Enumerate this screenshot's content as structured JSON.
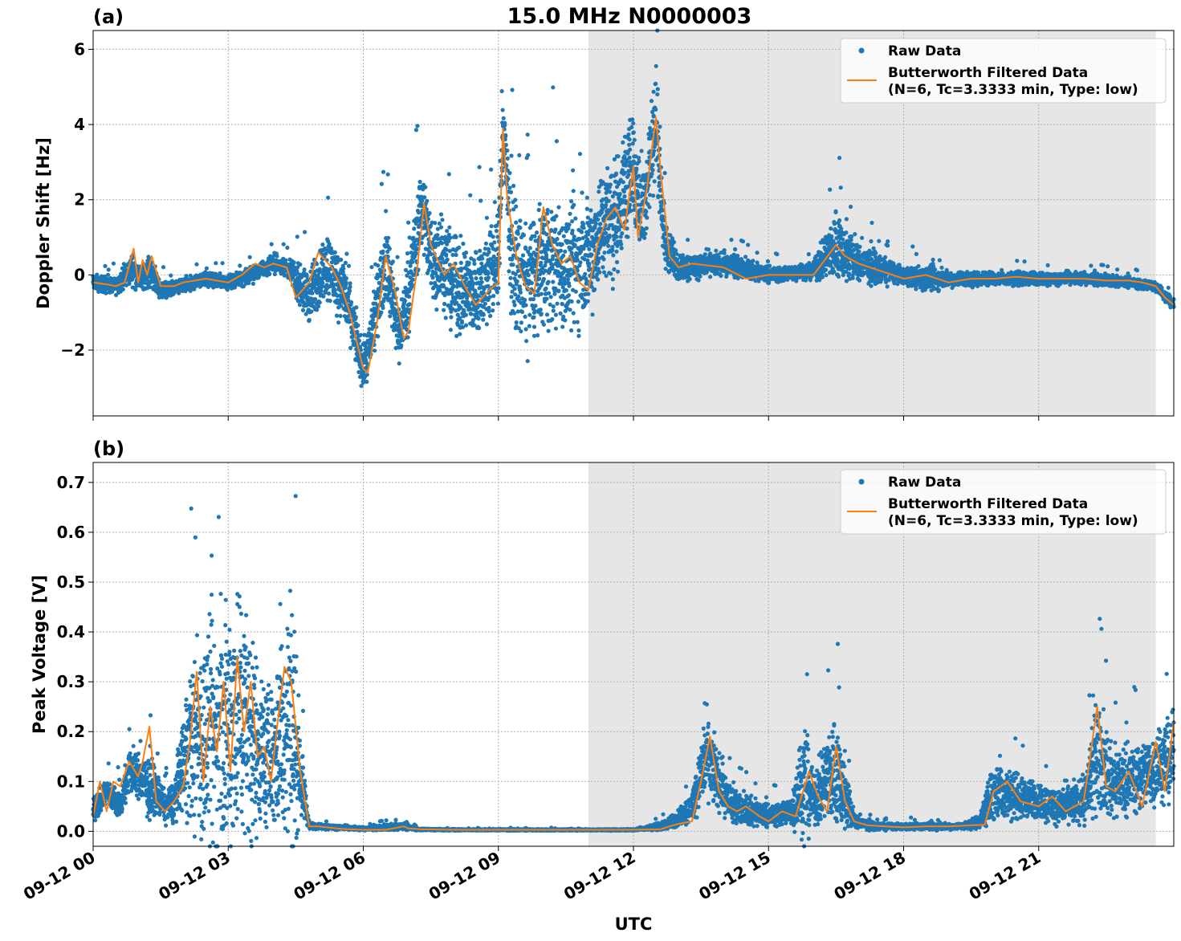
{
  "figure": {
    "title": "15.0 MHz N0000003",
    "xlabel": "UTC"
  },
  "colors": {
    "raw": "#1f77b4",
    "filtered": "#ff7f0e",
    "shade": "#e6e6e6",
    "grid": "#b0b0b0"
  },
  "chart_data": [
    {
      "type": "scatter",
      "panel_label": "(a)",
      "title": "15.0 MHz N0000003",
      "ylabel": "Doppler Shift [Hz]",
      "xlabel": "",
      "x_unit": "hours since 09-12 00:00 UTC",
      "xlim": [
        0,
        24
      ],
      "ylim": [
        -3.75,
        6.5
      ],
      "yticks": [
        -2,
        0,
        2,
        4,
        6
      ],
      "ytick_labels": [
        "−2",
        "0",
        "2",
        "4",
        "6"
      ],
      "grid": true,
      "legend_position": "top-right",
      "shaded_region": [
        11.0,
        23.6
      ],
      "series": [
        {
          "name": "Raw Data",
          "kind": "markers",
          "x": [
            0,
            0.5,
            0.9,
            1.0,
            1.3,
            1.5,
            2.0,
            2.5,
            3.0,
            3.5,
            4.0,
            4.3,
            4.8,
            5.2,
            5.6,
            6.0,
            6.2,
            6.5,
            6.8,
            7.0,
            7.3,
            7.5,
            7.8,
            8.0,
            8.5,
            9.0,
            9.1,
            9.3,
            9.6,
            10.0,
            10.3,
            10.6,
            11.0,
            11.3,
            11.6,
            12.0,
            12.2,
            12.5,
            12.7,
            13.0,
            14.0,
            15.0,
            16.0,
            16.5,
            17.0,
            18.0,
            18.5,
            19.0,
            20.0,
            21.0,
            22.0,
            23.0,
            23.6,
            24.0
          ],
          "y_center": [
            -0.2,
            -0.3,
            0.2,
            -0.1,
            0.1,
            -0.4,
            -0.3,
            -0.1,
            -0.2,
            0,
            0.3,
            0.2,
            -0.6,
            0.3,
            -0.5,
            -2.5,
            -1.5,
            0.4,
            -1.6,
            -0.5,
            1.9,
            0.5,
            0.3,
            -0.3,
            -0.5,
            0.4,
            3.9,
            0.5,
            -0.3,
            0.4,
            0.3,
            0.1,
            0.5,
            1.3,
            1.6,
            2.9,
            1.5,
            4.2,
            0.8,
            0.2,
            0.3,
            0,
            0.1,
            0.8,
            0.3,
            0,
            -0.1,
            -0.1,
            -0.1,
            -0.1,
            -0.1,
            -0.2,
            -0.3,
            -0.8
          ],
          "y_spread": [
            0.3,
            0.3,
            0.6,
            0.4,
            0.6,
            0.3,
            0.25,
            0.25,
            0.25,
            0.3,
            0.3,
            0.3,
            1.0,
            1.2,
            1.3,
            0.8,
            1.0,
            1.4,
            1.1,
            1.6,
            1.6,
            1.8,
            1.8,
            1.7,
            1.7,
            2.0,
            1.6,
            2.2,
            2.2,
            2.3,
            2.2,
            2.3,
            2.2,
            2.1,
            2.3,
            2.0,
            1.8,
            2.0,
            1.0,
            0.5,
            0.4,
            0.3,
            0.3,
            1.4,
            0.7,
            0.3,
            0.5,
            0.3,
            0.25,
            0.25,
            0.2,
            0.2,
            0.2,
            0.2
          ]
        },
        {
          "name": "Butterworth Filtered Data\n(N=6, Tc=3.3333 min, Type: low)",
          "kind": "line",
          "x": [
            0,
            0.3,
            0.5,
            0.7,
            0.9,
            1.0,
            1.1,
            1.2,
            1.3,
            1.5,
            1.8,
            2.0,
            2.5,
            3.0,
            3.3,
            3.6,
            3.8,
            4.0,
            4.3,
            4.5,
            4.8,
            5.0,
            5.3,
            5.5,
            5.7,
            6.0,
            6.1,
            6.3,
            6.5,
            6.7,
            6.9,
            7.0,
            7.2,
            7.35,
            7.5,
            7.8,
            8.0,
            8.3,
            8.5,
            8.8,
            9.0,
            9.1,
            9.2,
            9.4,
            9.6,
            9.8,
            10.0,
            10.2,
            10.4,
            10.6,
            10.8,
            11.0,
            11.2,
            11.4,
            11.6,
            11.8,
            12.0,
            12.1,
            12.3,
            12.5,
            12.6,
            12.8,
            13.0,
            13.3,
            14.0,
            14.5,
            15.0,
            15.5,
            16.0,
            16.5,
            16.7,
            17.0,
            17.5,
            18.0,
            18.5,
            19.0,
            19.5,
            20.0,
            20.5,
            21.0,
            21.5,
            22.0,
            22.5,
            23.0,
            23.3,
            23.6,
            23.8,
            24.0
          ],
          "y": [
            -0.2,
            -0.25,
            -0.3,
            -0.2,
            0.7,
            -0.2,
            0.4,
            0.0,
            0.5,
            -0.3,
            -0.3,
            -0.2,
            -0.1,
            -0.2,
            0.0,
            0.3,
            0.2,
            0.3,
            0.2,
            -0.6,
            -0.2,
            0.6,
            0.2,
            -0.3,
            -1.0,
            -2.5,
            -2.6,
            -1.3,
            0.5,
            -0.4,
            -1.7,
            -1.5,
            0.2,
            1.9,
            0.8,
            0.0,
            0.3,
            -0.4,
            -0.8,
            -0.4,
            -0.2,
            3.9,
            2.0,
            0.5,
            -0.3,
            -0.5,
            1.8,
            0.8,
            0.3,
            0.5,
            -0.2,
            -0.4,
            0.8,
            1.5,
            1.8,
            1.2,
            2.9,
            1.0,
            2.3,
            4.2,
            2.8,
            0.5,
            0.2,
            0.3,
            0.2,
            -0.1,
            0.0,
            0.0,
            0.0,
            0.8,
            0.5,
            0.3,
            0.1,
            -0.1,
            0.0,
            -0.2,
            -0.1,
            -0.1,
            -0.05,
            -0.1,
            -0.1,
            -0.1,
            -0.15,
            -0.15,
            -0.2,
            -0.3,
            -0.6,
            -0.8
          ]
        }
      ]
    },
    {
      "type": "scatter",
      "panel_label": "(b)",
      "title": "",
      "ylabel": "Peak Voltage [V]",
      "xlabel": "UTC",
      "x_unit": "hours since 09-12 00:00 UTC",
      "xlim": [
        0,
        24
      ],
      "ylim": [
        -0.03,
        0.74
      ],
      "yticks": [
        0.0,
        0.1,
        0.2,
        0.3,
        0.4,
        0.5,
        0.6,
        0.7
      ],
      "ytick_labels": [
        "0.0",
        "0.1",
        "0.2",
        "0.3",
        "0.4",
        "0.5",
        "0.6",
        "0.7"
      ],
      "xticks": [
        0,
        3,
        6,
        9,
        12,
        15,
        18,
        21
      ],
      "xtick_labels": [
        "09-12 00",
        "09-12 03",
        "09-12 06",
        "09-12 09",
        "09-12 12",
        "09-12 15",
        "09-12 18",
        "09-12 21"
      ],
      "grid": true,
      "legend_position": "top-right",
      "shaded_region": [
        11.0,
        23.6
      ],
      "series": [
        {
          "name": "Raw Data",
          "kind": "markers",
          "x": [
            0,
            0.3,
            0.6,
            0.8,
            1.0,
            1.2,
            1.4,
            1.6,
            1.8,
            2.0,
            2.3,
            2.6,
            2.9,
            3.2,
            3.5,
            3.8,
            4.0,
            4.2,
            4.4,
            4.6,
            4.8,
            5.0,
            6.0,
            6.9,
            7.2,
            8.0,
            9.0,
            10.0,
            11.0,
            12.0,
            12.6,
            12.9,
            13.3,
            13.6,
            13.9,
            14.2,
            14.6,
            15.0,
            15.5,
            15.8,
            16.0,
            16.4,
            16.6,
            16.9,
            17.3,
            18.0,
            18.7,
            19.3,
            19.7,
            20.0,
            20.5,
            21.0,
            21.5,
            22.0,
            22.3,
            22.6,
            23.0,
            23.5,
            24.0
          ],
          "y_center": [
            0.04,
            0.08,
            0.05,
            0.12,
            0.11,
            0.09,
            0.08,
            0.05,
            0.06,
            0.15,
            0.2,
            0.18,
            0.2,
            0.25,
            0.2,
            0.15,
            0.15,
            0.2,
            0.22,
            0.12,
            0.01,
            0.01,
            0.005,
            0.01,
            0.004,
            0.003,
            0.003,
            0.003,
            0.003,
            0.003,
            0.01,
            0.02,
            0.05,
            0.15,
            0.1,
            0.05,
            0.04,
            0.03,
            0.04,
            0.1,
            0.06,
            0.12,
            0.1,
            0.02,
            0.01,
            0.01,
            0.01,
            0.01,
            0.02,
            0.08,
            0.07,
            0.06,
            0.05,
            0.06,
            0.15,
            0.1,
            0.1,
            0.12,
            0.15
          ],
          "y_spread": [
            0.03,
            0.04,
            0.04,
            0.06,
            0.07,
            0.08,
            0.06,
            0.04,
            0.06,
            0.14,
            0.28,
            0.32,
            0.35,
            0.4,
            0.3,
            0.2,
            0.2,
            0.32,
            0.4,
            0.12,
            0.01,
            0.008,
            0.004,
            0.01,
            0.003,
            0.002,
            0.002,
            0.002,
            0.002,
            0.002,
            0.01,
            0.02,
            0.04,
            0.12,
            0.08,
            0.04,
            0.04,
            0.03,
            0.04,
            0.18,
            0.06,
            0.16,
            0.14,
            0.02,
            0.01,
            0.008,
            0.01,
            0.008,
            0.02,
            0.09,
            0.06,
            0.05,
            0.05,
            0.06,
            0.15,
            0.1,
            0.1,
            0.1,
            0.12
          ]
        },
        {
          "name": "Butterworth Filtered Data\n(N=6, Tc=3.3333 min, Type: low)",
          "kind": "line",
          "x": [
            0,
            0.15,
            0.3,
            0.45,
            0.6,
            0.8,
            1.0,
            1.1,
            1.25,
            1.4,
            1.6,
            1.8,
            2.0,
            2.15,
            2.3,
            2.45,
            2.6,
            2.75,
            2.9,
            3.05,
            3.2,
            3.35,
            3.5,
            3.65,
            3.8,
            3.95,
            4.1,
            4.25,
            4.4,
            4.6,
            4.8,
            5.0,
            5.5,
            6.0,
            6.5,
            6.9,
            7.0,
            7.3,
            8.0,
            9.0,
            10.0,
            11.0,
            12.0,
            12.6,
            12.8,
            13.0,
            13.3,
            13.5,
            13.7,
            13.9,
            14.1,
            14.3,
            14.5,
            14.8,
            15.0,
            15.3,
            15.6,
            15.9,
            16.1,
            16.3,
            16.5,
            16.7,
            16.9,
            17.2,
            17.6,
            18.0,
            18.5,
            19.0,
            19.5,
            19.8,
            20.0,
            20.3,
            20.6,
            21.0,
            21.3,
            21.6,
            22.0,
            22.3,
            22.5,
            22.7,
            23.0,
            23.3,
            23.6,
            23.8,
            24.0
          ],
          "y": [
            0.03,
            0.1,
            0.04,
            0.1,
            0.09,
            0.14,
            0.11,
            0.14,
            0.21,
            0.06,
            0.04,
            0.06,
            0.09,
            0.18,
            0.32,
            0.1,
            0.25,
            0.16,
            0.3,
            0.12,
            0.35,
            0.2,
            0.3,
            0.15,
            0.17,
            0.1,
            0.22,
            0.33,
            0.3,
            0.12,
            0.01,
            0.01,
            0.005,
            0.003,
            0.003,
            0.01,
            0.006,
            0.004,
            0.003,
            0.003,
            0.003,
            0.003,
            0.003,
            0.004,
            0.01,
            0.015,
            0.02,
            0.1,
            0.19,
            0.08,
            0.05,
            0.04,
            0.05,
            0.03,
            0.02,
            0.04,
            0.03,
            0.12,
            0.07,
            0.04,
            0.17,
            0.06,
            0.02,
            0.012,
            0.01,
            0.008,
            0.01,
            0.01,
            0.012,
            0.013,
            0.08,
            0.1,
            0.06,
            0.05,
            0.07,
            0.04,
            0.06,
            0.25,
            0.09,
            0.08,
            0.12,
            0.05,
            0.18,
            0.08,
            0.22
          ]
        }
      ]
    }
  ],
  "legend": {
    "raw_label": "Raw Data",
    "filtered_line1": "Butterworth Filtered Data",
    "filtered_line2": "(N=6, Tc=3.3333 min, Type: low)"
  }
}
